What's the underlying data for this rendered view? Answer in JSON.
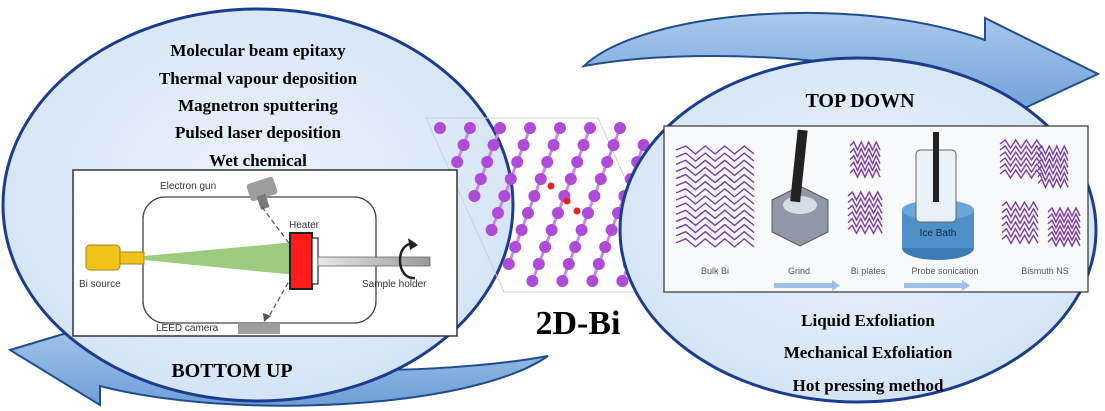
{
  "colors": {
    "circle_fill": "#ddeaf8",
    "circle_stroke": "#1b3d8f",
    "arrow_fill": "#8db3e2",
    "arrow_stroke": "#1f4e8f",
    "atom": "#b04ad8",
    "bond": "#c78be6",
    "heater_red": "#ff1c1c",
    "beam_green": "#8cc26a",
    "bi_source_yellow": "#f2c21b"
  },
  "bottom_up": {
    "methods": [
      "Molecular beam epitaxy",
      "Thermal vapour deposition",
      "Magnetron sputtering",
      "Pulsed laser deposition",
      "Wet chemical"
    ],
    "title": "BOTTOM UP",
    "apparatus": {
      "electron_gun": "Electron gun",
      "heater": "Heater",
      "bi_source": "Bi source",
      "sample_holder": "Sample holder",
      "leed_camera": "LEED camera"
    }
  },
  "center": {
    "title": "2D-Bi"
  },
  "top_down": {
    "title": "TOP DOWN",
    "steps": [
      "Bulk Bi",
      "Grind",
      "Bi plates",
      "Probe sonication",
      "Bismuth NS"
    ],
    "ice_bath": "Ice Bath",
    "methods": [
      "Liquid Exfoliation",
      "Mechanical Exfoliation",
      "Hot pressing method"
    ]
  }
}
